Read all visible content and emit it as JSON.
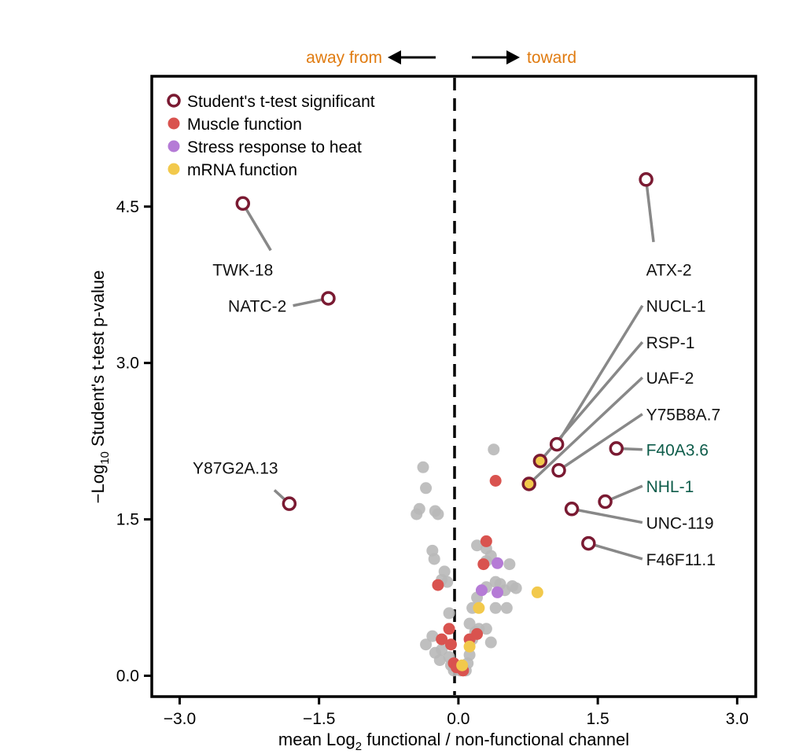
{
  "chart_data": {
    "type": "scatter",
    "title": "",
    "xlabel": "mean Log2 functional / non-functional channel",
    "xlabel_parts": {
      "pre": "mean Log",
      "sub": "2",
      "post": " functional / non-functional channel"
    },
    "ylabel": "−Log10 Student's t-test p-value",
    "ylabel_parts": {
      "pre": "−Log",
      "sub": "10",
      "post": " Student's t-test p-value"
    },
    "xlim": [
      -3.3,
      3.2
    ],
    "ylim": [
      -0.2,
      5.75
    ],
    "x_ticks": [
      -3.0,
      -1.5,
      0.0,
      1.5,
      3.0
    ],
    "x_tick_labels": [
      "−3.0",
      "−1.5",
      "0.0",
      "1.5",
      "3.0"
    ],
    "y_ticks": [
      0.0,
      1.5,
      3.0,
      4.5
    ],
    "y_tick_labels": [
      "0.0",
      "1.5",
      "3.0",
      "4.5"
    ],
    "direction": {
      "left": "away from",
      "right": "toward",
      "color": "#E07B10"
    },
    "colors": {
      "significant_ring": "#7A1A32",
      "muscle": "#D9534F",
      "stress": "#B57BD6",
      "mrna": "#F2C94C",
      "nonsig": "#B8B8B8",
      "leader": "#888888",
      "green_label": "#0E5C4A",
      "black_label": "#111111"
    },
    "legend": [
      {
        "label": "Student's t-test significant",
        "type": "sig"
      },
      {
        "label": "Muscle function",
        "type": "muscle"
      },
      {
        "label": "Stress response to heat",
        "type": "stress"
      },
      {
        "label": "mRNA function",
        "type": "mrna"
      }
    ],
    "background_points": [
      [
        -0.38,
        2.0
      ],
      [
        -0.35,
        1.8
      ],
      [
        -0.45,
        1.55
      ],
      [
        -0.42,
        1.6
      ],
      [
        -0.25,
        1.58
      ],
      [
        -0.22,
        1.55
      ],
      [
        -0.28,
        1.2
      ],
      [
        -0.26,
        1.12
      ],
      [
        -0.15,
        1.0
      ],
      [
        -0.12,
        0.9
      ],
      [
        -0.18,
        0.92
      ],
      [
        -0.1,
        0.6
      ],
      [
        -0.35,
        0.3
      ],
      [
        -0.28,
        0.38
      ],
      [
        -0.25,
        0.22
      ],
      [
        -0.2,
        0.15
      ],
      [
        -0.18,
        0.25
      ],
      [
        -0.1,
        0.18
      ],
      [
        -0.08,
        0.1
      ],
      [
        -0.05,
        0.05
      ],
      [
        0.02,
        0.05
      ],
      [
        0.05,
        0.08
      ],
      [
        0.08,
        0.05
      ],
      [
        0.1,
        0.12
      ],
      [
        0.12,
        0.2
      ],
      [
        0.15,
        0.35
      ],
      [
        0.18,
        0.42
      ],
      [
        0.22,
        0.45
      ],
      [
        0.3,
        0.45
      ],
      [
        0.35,
        0.32
      ],
      [
        0.12,
        0.5
      ],
      [
        0.15,
        0.65
      ],
      [
        0.2,
        0.75
      ],
      [
        0.2,
        1.25
      ],
      [
        0.3,
        1.22
      ],
      [
        0.35,
        1.15
      ],
      [
        0.3,
        0.85
      ],
      [
        0.4,
        0.9
      ],
      [
        0.45,
        0.88
      ],
      [
        0.5,
        0.82
      ],
      [
        0.58,
        0.86
      ],
      [
        0.62,
        0.84
      ],
      [
        0.55,
        1.07
      ],
      [
        0.4,
        0.65
      ],
      [
        0.52,
        0.65
      ],
      [
        0.38,
        2.17
      ],
      [
        0.3,
        1.1
      ]
    ],
    "category_points": [
      {
        "x": -0.22,
        "y": 0.87,
        "cat": "muscle"
      },
      {
        "x": 0.3,
        "y": 1.29,
        "cat": "muscle"
      },
      {
        "x": 0.27,
        "y": 1.07,
        "cat": "muscle"
      },
      {
        "x": 0.4,
        "y": 1.87,
        "cat": "muscle"
      },
      {
        "x": -0.1,
        "y": 0.45,
        "cat": "muscle"
      },
      {
        "x": -0.18,
        "y": 0.35,
        "cat": "muscle"
      },
      {
        "x": -0.08,
        "y": 0.3,
        "cat": "muscle"
      },
      {
        "x": -0.05,
        "y": 0.12,
        "cat": "muscle"
      },
      {
        "x": 0.05,
        "y": 0.05,
        "cat": "muscle"
      },
      {
        "x": 0.12,
        "y": 0.35,
        "cat": "muscle"
      },
      {
        "x": 0.2,
        "y": 0.4,
        "cat": "muscle"
      },
      {
        "x": -0.02,
        "y": 0.08,
        "cat": "muscle"
      },
      {
        "x": 0.42,
        "y": 1.08,
        "cat": "stress"
      },
      {
        "x": 0.25,
        "y": 0.82,
        "cat": "stress"
      },
      {
        "x": 0.42,
        "y": 0.8,
        "cat": "stress"
      },
      {
        "x": 0.85,
        "y": 0.8,
        "cat": "mrna"
      },
      {
        "x": 0.22,
        "y": 0.65,
        "cat": "mrna"
      },
      {
        "x": 0.12,
        "y": 0.28,
        "cat": "mrna"
      },
      {
        "x": 0.04,
        "y": 0.1,
        "cat": "mrna"
      }
    ],
    "significant_points": [
      {
        "label": "TWK-18",
        "x": -2.32,
        "y": 4.53,
        "color": "black",
        "fill": "white",
        "lx": -2.32,
        "ly": 3.9,
        "line_end": [
          -2.02,
          4.08
        ],
        "anchor": "middle"
      },
      {
        "label": "NATC-2",
        "x": -1.4,
        "y": 3.62,
        "color": "black",
        "fill": "white",
        "lx": -1.85,
        "ly": 3.55,
        "line_end": [
          -1.78,
          3.55
        ],
        "anchor": "end"
      },
      {
        "label": "Y87G2A.13",
        "x": -1.82,
        "y": 1.65,
        "color": "black",
        "fill": "white",
        "lx": -2.4,
        "ly": 2.0,
        "line_end": [
          -1.98,
          1.78
        ],
        "anchor": "middle"
      },
      {
        "label": "ATX-2",
        "x": 2.02,
        "y": 4.76,
        "color": "black",
        "fill": "white",
        "lx": 2.02,
        "ly": 3.9,
        "line_end": [
          2.1,
          4.16
        ],
        "anchor": "start"
      },
      {
        "label": "NUCL-1",
        "x": 1.06,
        "y": 2.22,
        "color": "black",
        "fill": "white",
        "lx": 2.02,
        "ly": 3.55,
        "line_end": [
          1.98,
          3.55
        ],
        "anchor": "start"
      },
      {
        "label": "RSP-1",
        "x": 0.88,
        "y": 2.06,
        "color": "black",
        "fill": "mrna",
        "lx": 2.02,
        "ly": 3.2,
        "line_end": [
          1.98,
          3.2
        ],
        "anchor": "start"
      },
      {
        "label": "UAF-2",
        "x": 0.76,
        "y": 1.84,
        "color": "black",
        "fill": "mrna",
        "lx": 2.02,
        "ly": 2.86,
        "line_end": [
          1.98,
          2.86
        ],
        "anchor": "start"
      },
      {
        "label": "Y75B8A.7",
        "x": 1.08,
        "y": 1.97,
        "color": "black",
        "fill": "white",
        "lx": 2.02,
        "ly": 2.51,
        "line_end": [
          1.98,
          2.51
        ],
        "anchor": "start"
      },
      {
        "label": "F40A3.6",
        "x": 1.7,
        "y": 2.18,
        "color": "green",
        "fill": "white",
        "lx": 2.02,
        "ly": 2.17,
        "line_end": [
          1.98,
          2.17
        ],
        "anchor": "start"
      },
      {
        "label": "NHL-1",
        "x": 1.58,
        "y": 1.67,
        "color": "green",
        "fill": "white",
        "lx": 2.02,
        "ly": 1.82,
        "line_end": [
          1.98,
          1.82
        ],
        "anchor": "start"
      },
      {
        "label": "UNC-119",
        "x": 1.22,
        "y": 1.6,
        "color": "black",
        "fill": "white",
        "lx": 2.02,
        "ly": 1.47,
        "line_end": [
          1.98,
          1.47
        ],
        "anchor": "start"
      },
      {
        "label": "F46F11.1",
        "x": 1.4,
        "y": 1.27,
        "color": "black",
        "fill": "white",
        "lx": 2.02,
        "ly": 1.12,
        "line_end": [
          1.98,
          1.12
        ],
        "anchor": "start"
      }
    ]
  }
}
